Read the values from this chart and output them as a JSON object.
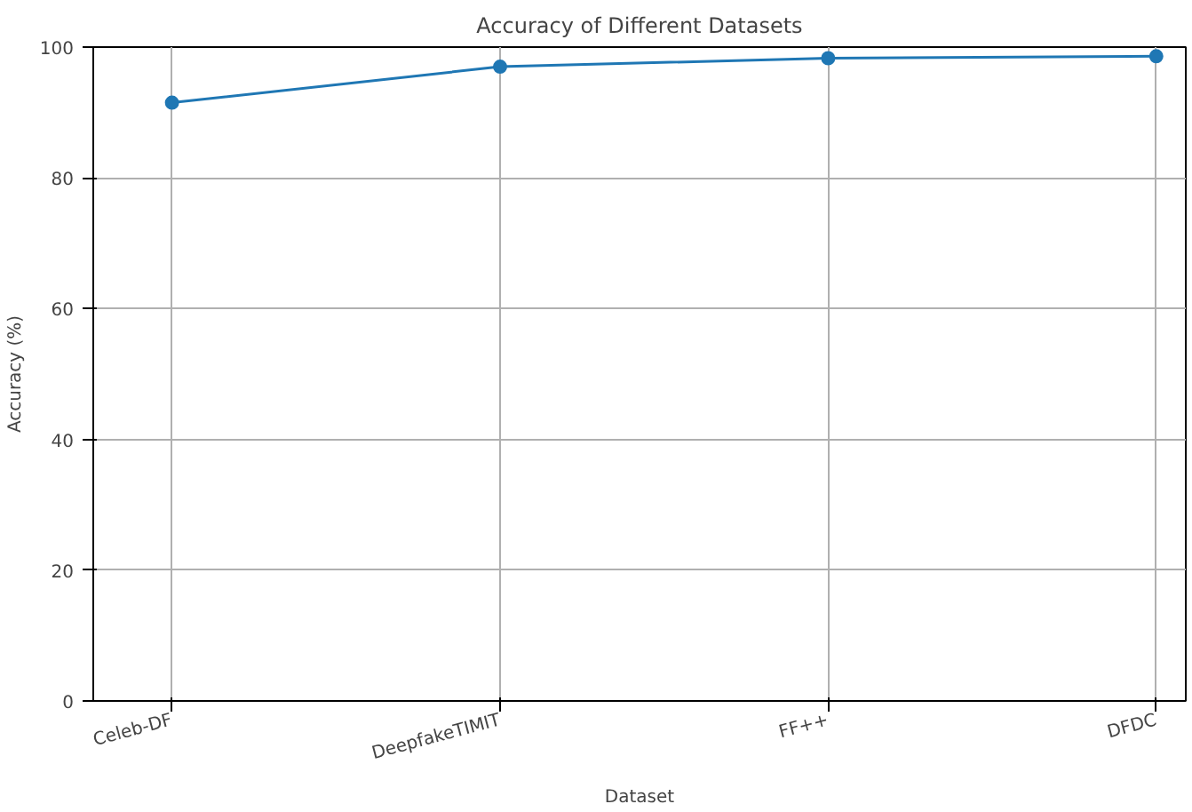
{
  "chart_data": {
    "type": "line",
    "title": "Accuracy of Different Datasets",
    "xlabel": "Dataset",
    "ylabel": "Accuracy (%)",
    "categories": [
      "Celeb-DF",
      "DeepfakeTIMIT",
      "FF++",
      "DFDC"
    ],
    "series": [
      {
        "color": "#1f77b4",
        "values": [
          91.5,
          97.0,
          98.3,
          98.6
        ]
      }
    ],
    "ylim": [
      0,
      100
    ],
    "yticks": [
      0,
      20,
      40,
      60,
      80,
      100
    ],
    "grid": true,
    "marker": "circle",
    "line_style": "solid"
  }
}
